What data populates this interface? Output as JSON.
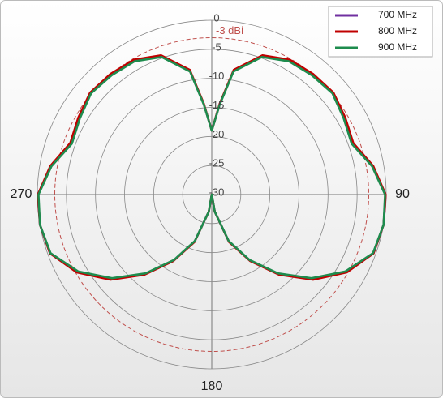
{
  "chart_data": {
    "type": "polar",
    "x": [
      0,
      5,
      10,
      20,
      30,
      40,
      50,
      60,
      70,
      80,
      90,
      100,
      110,
      120,
      130,
      140,
      150,
      160,
      170,
      180,
      190,
      200,
      210,
      220,
      230,
      240,
      250,
      260,
      270,
      280,
      290,
      300,
      310,
      320,
      330,
      340,
      350,
      355
    ],
    "series": [
      {
        "name": "700 MHz",
        "color": "#7030a0",
        "values": [
          -19,
          -14.4,
          -8.3,
          -4.6,
          -3.3,
          -3.0,
          -2.8,
          -3.6,
          -4.2,
          -1.9,
          -0.1,
          0,
          -0.4,
          -3.3,
          -7.4,
          -12.1,
          -16.9,
          -21.4,
          -27,
          -30,
          -27,
          -21.4,
          -16.9,
          -12.1,
          -7.4,
          -3.3,
          -0.4,
          0,
          -0.1,
          -1.9,
          -4.2,
          -3.6,
          -2.8,
          -3.0,
          -3.3,
          -4.6,
          -8.3,
          -14.4
        ]
      },
      {
        "name": "800 MHz",
        "color": "#c00000",
        "values": [
          -19,
          -14.3,
          -8.2,
          -4.5,
          -3.2,
          -2.9,
          -2.7,
          -3.5,
          -4.1,
          -1.8,
          -0.1,
          0,
          -0.4,
          -3.2,
          -7.2,
          -12,
          -16.8,
          -21.3,
          -27,
          -30,
          -27,
          -21.3,
          -16.8,
          -12,
          -7.2,
          -3.2,
          -0.4,
          0,
          -0.1,
          -1.8,
          -4.1,
          -3.5,
          -2.7,
          -2.9,
          -3.2,
          -4.5,
          -8.2,
          -14.3
        ]
      },
      {
        "name": "900 MHz",
        "color": "#1e8c4e",
        "values": [
          -19,
          -14.5,
          -8.5,
          -4.8,
          -3.5,
          -3.2,
          -2.9,
          -3.8,
          -4.4,
          -2,
          -0.2,
          0,
          -0.5,
          -3.5,
          -7.6,
          -12.3,
          -17,
          -21.5,
          -27,
          -30,
          -27,
          -21.5,
          -17,
          -12.3,
          -7.6,
          -3.5,
          -0.5,
          0,
          -0.2,
          -2,
          -4.4,
          -3.8,
          -2.9,
          -3.2,
          -3.5,
          -4.8,
          -8.5,
          -14.5
        ]
      }
    ],
    "ylim": [
      -30,
      0
    ],
    "yticks": [
      0,
      -5,
      -10,
      -15,
      -20,
      -25,
      -30
    ],
    "xticks": [
      90,
      180,
      270
    ],
    "reference": {
      "value": -3,
      "label": "-3 dBi",
      "color": "#c0504d"
    },
    "grid": true,
    "legend": "top-right"
  }
}
